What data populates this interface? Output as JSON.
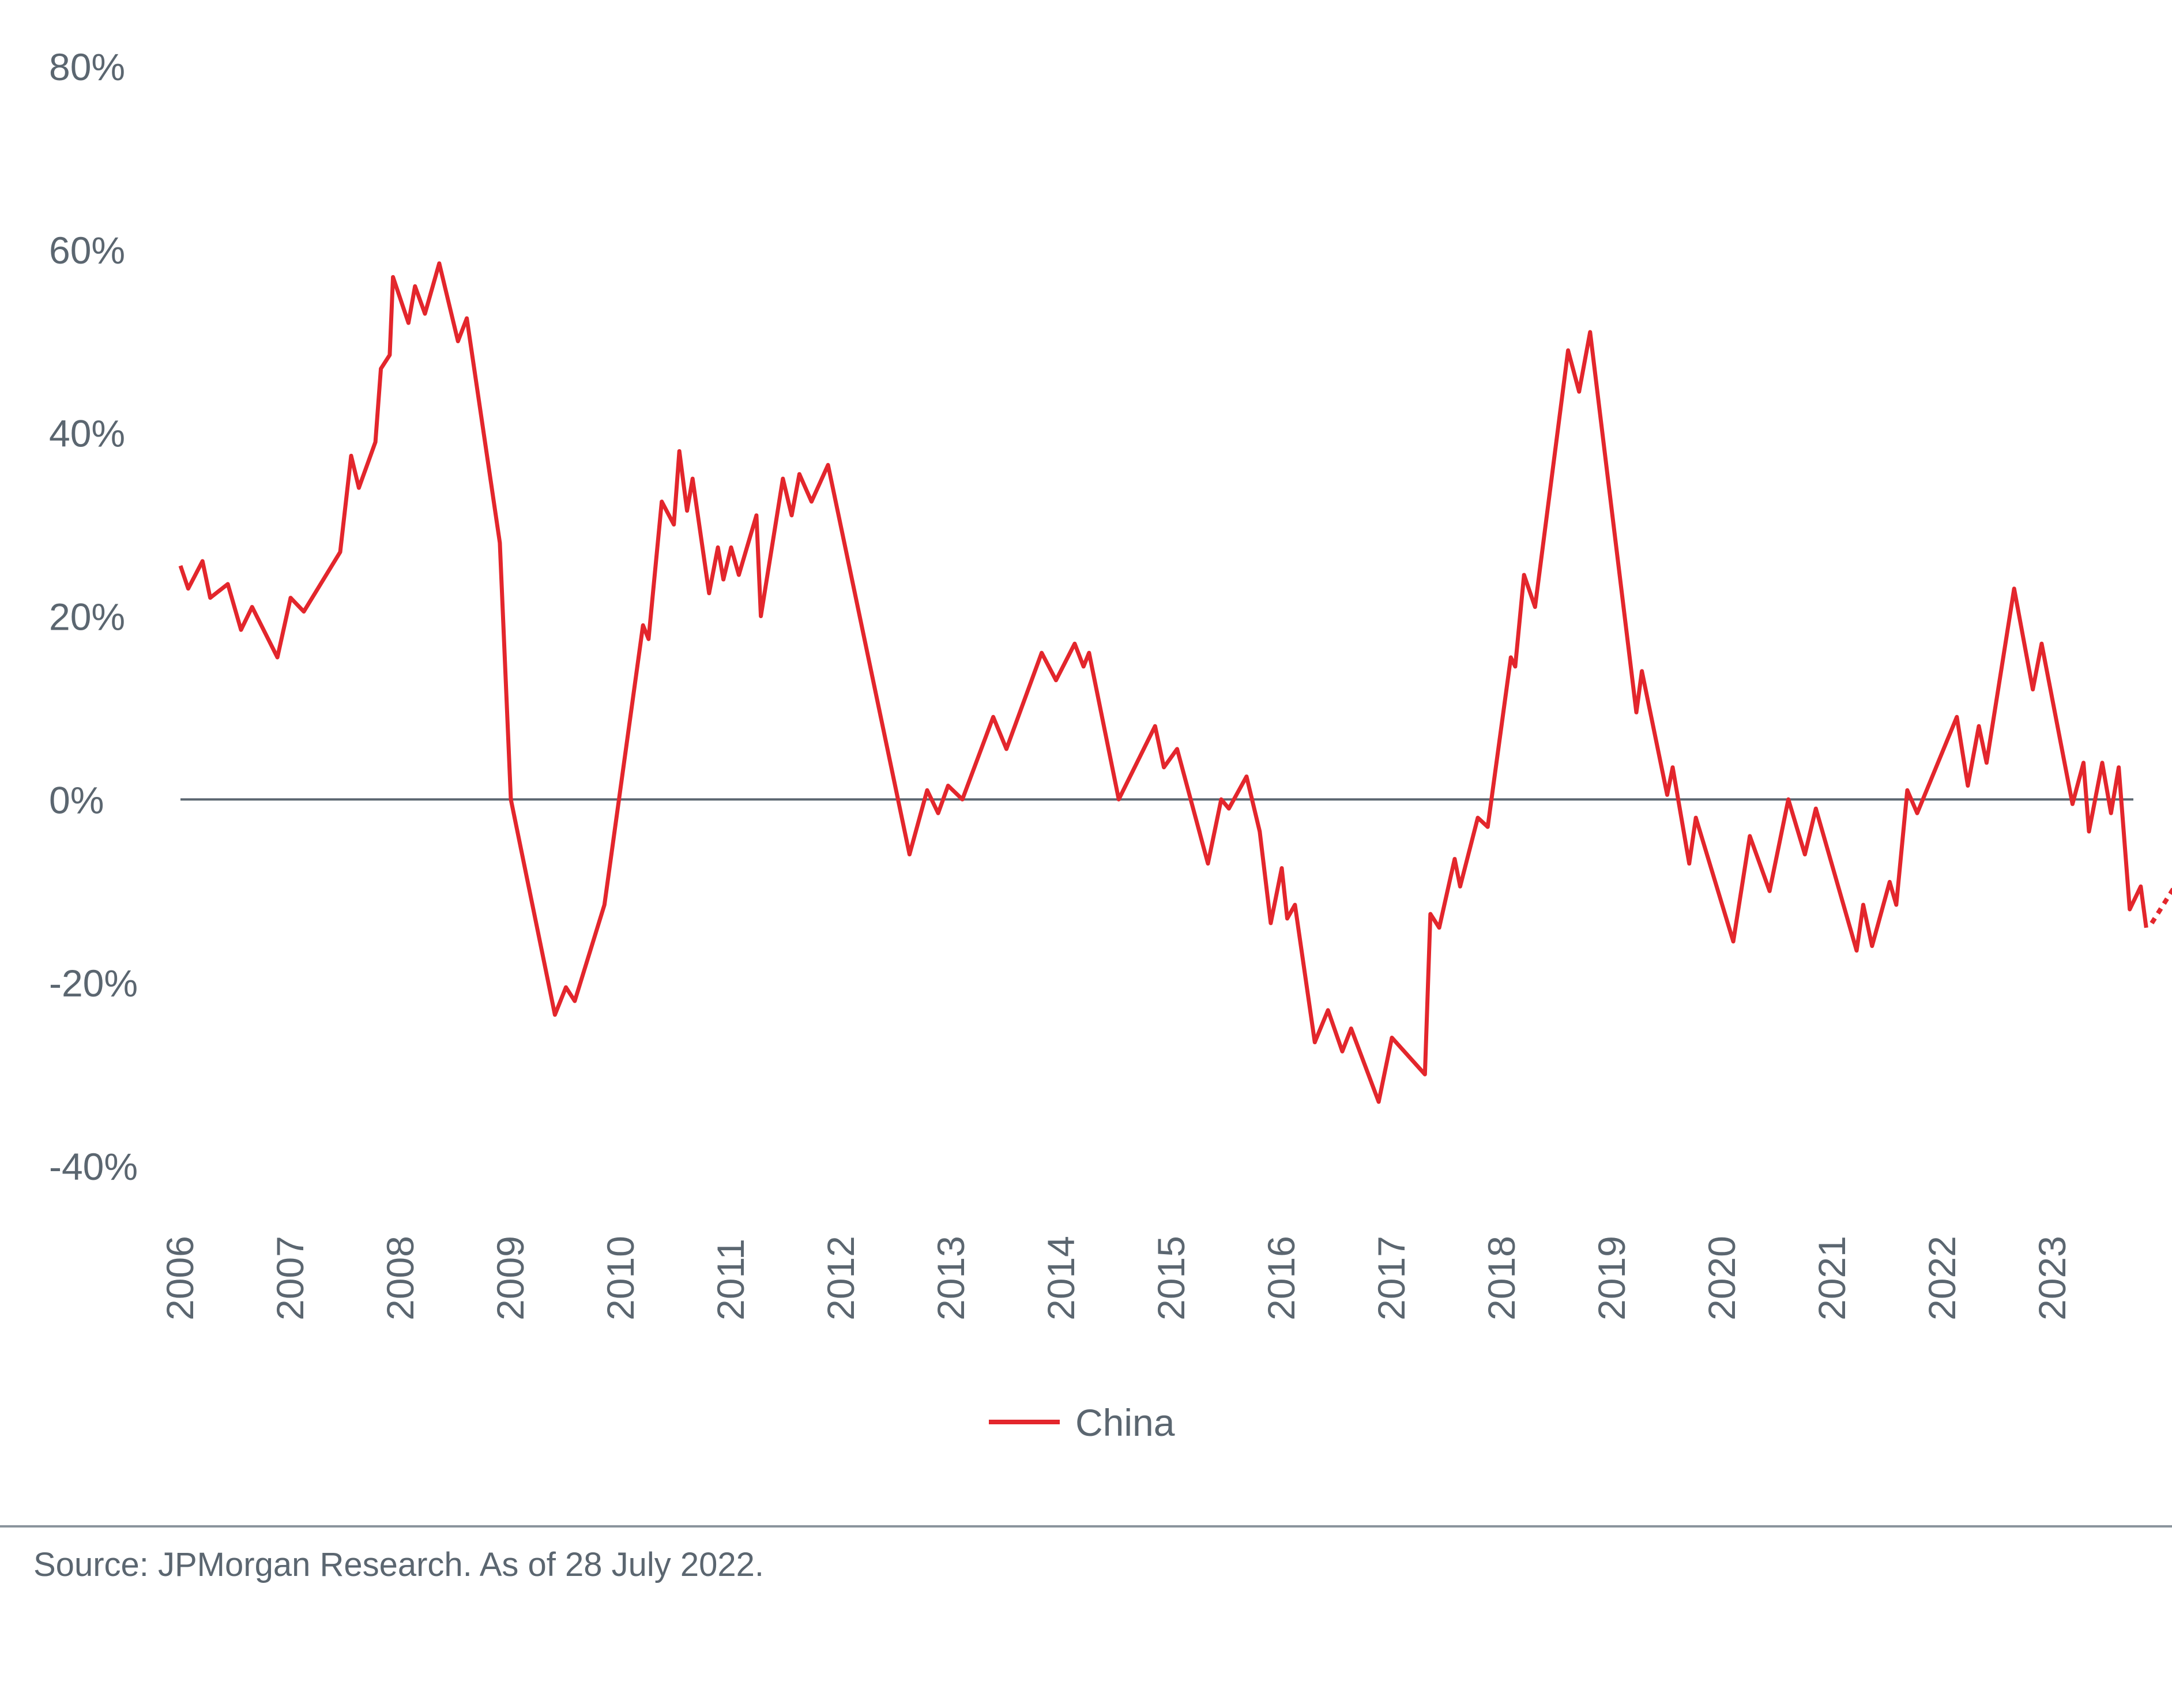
{
  "chart_data": {
    "type": "line",
    "title": "",
    "xlabel": "",
    "ylabel": "",
    "xlim": [
      2006,
      2023.75
    ],
    "ylim": [
      -40,
      80
    ],
    "y_ticks": [
      "80%",
      "60%",
      "40%",
      "20%",
      "0%",
      "-20%",
      "-40%"
    ],
    "y_tick_values": [
      80,
      60,
      40,
      20,
      0,
      -20,
      -40
    ],
    "x_ticks": [
      "2006",
      "2007",
      "2008",
      "2009",
      "2010",
      "2011",
      "2012",
      "2013",
      "2014",
      "2015",
      "2016",
      "2017",
      "2018",
      "2019",
      "2020",
      "2021",
      "2022",
      "2023"
    ],
    "x_tick_values": [
      2006,
      2007,
      2008,
      2009,
      2010,
      2011,
      2012,
      2013,
      2014,
      2015,
      2016,
      2017,
      2018,
      2019,
      2020,
      2021,
      2022,
      2023
    ],
    "grid": false,
    "zero_line": true,
    "legend_position": "bottom-center",
    "colors": {
      "series": "#e3262c",
      "axis": "#5b6670",
      "divider": "#8a949c"
    },
    "series": [
      {
        "name": "China",
        "style": "solid",
        "points": [
          [
            2006.0,
            25.5
          ],
          [
            2006.07,
            23
          ],
          [
            2006.2,
            26
          ],
          [
            2006.27,
            22
          ],
          [
            2006.43,
            23.5
          ],
          [
            2006.55,
            18.5
          ],
          [
            2006.65,
            21
          ],
          [
            2006.88,
            15.5
          ],
          [
            2007.0,
            22
          ],
          [
            2007.12,
            20.5
          ],
          [
            2007.45,
            27
          ],
          [
            2007.55,
            37.5
          ],
          [
            2007.62,
            34
          ],
          [
            2007.77,
            39
          ],
          [
            2007.82,
            47
          ],
          [
            2007.9,
            48.5
          ],
          [
            2007.93,
            57
          ],
          [
            2008.07,
            52
          ],
          [
            2008.13,
            56
          ],
          [
            2008.22,
            53
          ],
          [
            2008.35,
            58.5
          ],
          [
            2008.52,
            50
          ],
          [
            2008.6,
            52.5
          ],
          [
            2008.9,
            28
          ],
          [
            2009.0,
            0
          ],
          [
            2009.4,
            -23.5
          ],
          [
            2009.5,
            -20.5
          ],
          [
            2009.58,
            -22
          ],
          [
            2009.85,
            -11.5
          ],
          [
            2010.2,
            19
          ],
          [
            2010.25,
            17.5
          ],
          [
            2010.37,
            32.5
          ],
          [
            2010.48,
            30
          ],
          [
            2010.53,
            38
          ],
          [
            2010.6,
            31.5
          ],
          [
            2010.65,
            35
          ],
          [
            2010.8,
            22.5
          ],
          [
            2010.88,
            27.5
          ],
          [
            2010.93,
            24
          ],
          [
            2011.0,
            27.5
          ],
          [
            2011.07,
            24.5
          ],
          [
            2011.23,
            31
          ],
          [
            2011.27,
            20
          ],
          [
            2011.47,
            35
          ],
          [
            2011.55,
            31
          ],
          [
            2011.62,
            35.5
          ],
          [
            2011.73,
            32.5
          ],
          [
            2011.88,
            36.5
          ],
          [
            2012.62,
            -6
          ],
          [
            2012.78,
            1
          ],
          [
            2012.88,
            -1.5
          ],
          [
            2012.97,
            1.5
          ],
          [
            2013.1,
            0
          ],
          [
            2013.38,
            9
          ],
          [
            2013.5,
            5.5
          ],
          [
            2013.82,
            16
          ],
          [
            2013.95,
            13
          ],
          [
            2014.12,
            17
          ],
          [
            2014.2,
            14.5
          ],
          [
            2014.25,
            16
          ],
          [
            2014.52,
            0
          ],
          [
            2014.85,
            8
          ],
          [
            2014.93,
            3.5
          ],
          [
            2015.05,
            5.5
          ],
          [
            2015.33,
            -7
          ],
          [
            2015.45,
            0
          ],
          [
            2015.52,
            -1
          ],
          [
            2015.68,
            2.5
          ],
          [
            2015.8,
            -3.5
          ],
          [
            2015.9,
            -13.5
          ],
          [
            2016.0,
            -7.5
          ],
          [
            2016.05,
            -13
          ],
          [
            2016.12,
            -11.5
          ],
          [
            2016.3,
            -26.5
          ],
          [
            2016.42,
            -23
          ],
          [
            2016.55,
            -27.5
          ],
          [
            2016.63,
            -25
          ],
          [
            2016.88,
            -33
          ],
          [
            2017.0,
            -26
          ],
          [
            2017.3,
            -30
          ],
          [
            2017.35,
            -12.5
          ],
          [
            2017.43,
            -14
          ],
          [
            2017.57,
            -6.5
          ],
          [
            2017.62,
            -9.5
          ],
          [
            2017.78,
            -2
          ],
          [
            2017.87,
            -3
          ],
          [
            2018.08,
            15.5
          ],
          [
            2018.12,
            14.5
          ],
          [
            2018.2,
            24.5
          ],
          [
            2018.3,
            21
          ],
          [
            2018.6,
            49
          ],
          [
            2018.7,
            44.5
          ],
          [
            2018.8,
            51
          ],
          [
            2019.22,
            9.5
          ],
          [
            2019.27,
            14
          ],
          [
            2019.5,
            0.5
          ],
          [
            2019.55,
            3.5
          ],
          [
            2019.7,
            -7
          ],
          [
            2019.76,
            -2
          ],
          [
            2020.1,
            -15.5
          ],
          [
            2020.25,
            -4
          ],
          [
            2020.43,
            -10
          ],
          [
            2020.6,
            0
          ],
          [
            2020.75,
            -6
          ],
          [
            2020.85,
            -1
          ],
          [
            2021.22,
            -16.5
          ],
          [
            2021.28,
            -11.5
          ],
          [
            2021.36,
            -16
          ],
          [
            2021.52,
            -9
          ],
          [
            2021.58,
            -11.5
          ],
          [
            2021.68,
            1
          ],
          [
            2021.77,
            -1.5
          ],
          [
            2022.13,
            9
          ],
          [
            2022.23,
            1.5
          ],
          [
            2022.33,
            8
          ],
          [
            2022.4,
            4
          ],
          [
            2022.65,
            23
          ],
          [
            2022.82,
            12
          ],
          [
            2022.9,
            17
          ],
          [
            2023.18,
            -0.5
          ],
          [
            2023.28,
            4
          ],
          [
            2023.33,
            -3.5
          ],
          [
            2023.45,
            4
          ],
          [
            2023.53,
            -1.5
          ],
          [
            2023.6,
            3.5
          ],
          [
            2023.7,
            -12
          ],
          [
            2023.8,
            -9.5
          ],
          [
            2023.85,
            -14
          ]
        ]
      },
      {
        "name": "",
        "style": "dotted",
        "points": [
          [
            2023.9,
            -13.5
          ],
          [
            2025.1,
            9.5
          ]
        ],
        "arrow": true
      }
    ]
  },
  "legend": {
    "label": "China"
  },
  "footer": {
    "source": "Source: JPMorgan Research. As of 28 July 2022."
  }
}
